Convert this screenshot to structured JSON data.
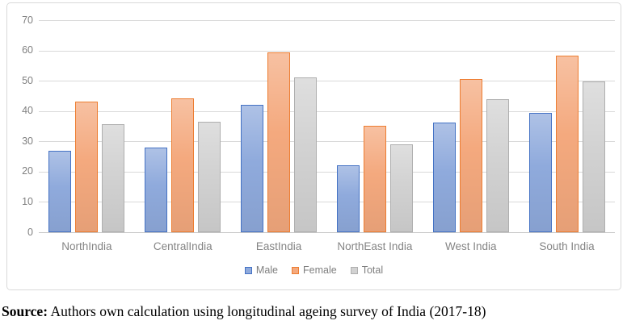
{
  "chart_data": {
    "type": "bar",
    "title": "",
    "xlabel": "",
    "ylabel": "",
    "categories": [
      "NorthIndia",
      "CentralIndia",
      "EastIndia",
      "NorthEast India",
      "West India",
      "South India"
    ],
    "series": [
      {
        "name": "Male",
        "fill": "#8FAADC",
        "border": "#4472C4",
        "values": [
          26.8,
          28.0,
          42.0,
          22.1,
          36.2,
          39.5
        ]
      },
      {
        "name": "Female",
        "fill": "#F4A97E",
        "border": "#ED7D31",
        "values": [
          43.2,
          44.3,
          59.3,
          35.1,
          50.7,
          58.2
        ]
      },
      {
        "name": "Total",
        "fill": "#D2D2D2",
        "border": "#AFAFAF",
        "values": [
          35.7,
          36.4,
          51.0,
          29.0,
          44.0,
          49.8
        ]
      }
    ],
    "ylim": [
      0,
      70
    ],
    "yticks": [
      0,
      10,
      20,
      30,
      40,
      50,
      60,
      70
    ],
    "grid": "horizontal",
    "legend_position": "bottom-center"
  },
  "colors": {
    "gridline": "#D9D9D9",
    "axis_line": "#C6C6C6",
    "frame_border": "#D9D9D9",
    "tick_text": "#7F7F7F",
    "background": "#FFFFFF"
  },
  "source": {
    "prefix": "Source:",
    "text": " Authors own calculation using longitudinal ageing survey of India (2017-18)"
  }
}
